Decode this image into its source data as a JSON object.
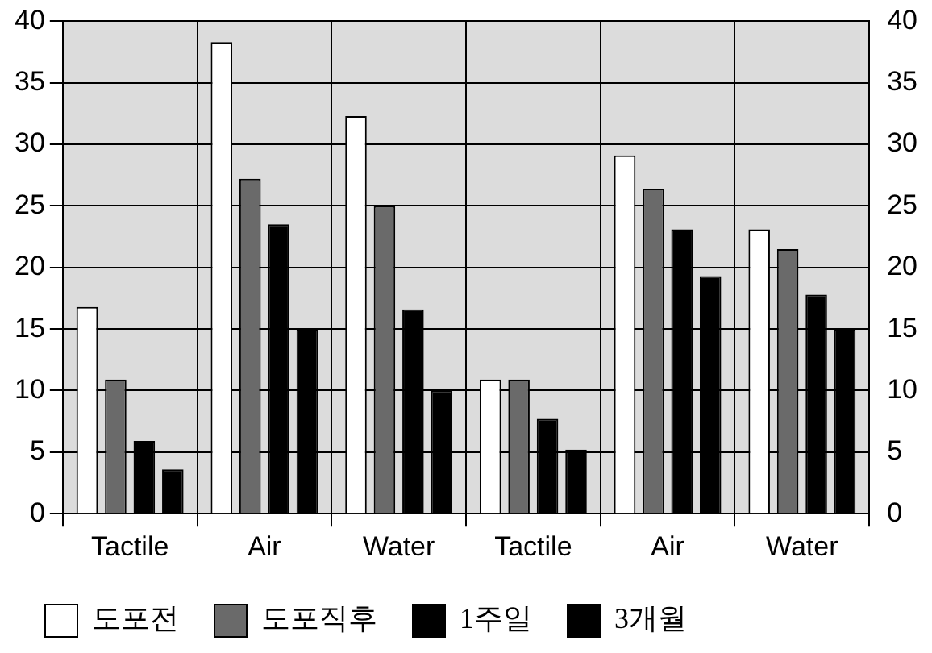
{
  "chart_data": {
    "type": "bar",
    "categories": [
      "Tactile",
      "Air",
      "Water",
      "Tactile",
      "Air",
      "Water"
    ],
    "series": [
      {
        "name": "도포전",
        "color": "#ffffff",
        "values": [
          16.8,
          38.3,
          32.3,
          10.9,
          29.1,
          23.1
        ]
      },
      {
        "name": "도포직후",
        "color": "#6a6a6a",
        "values": [
          10.9,
          27.2,
          25,
          10.9,
          26.4,
          21.5
        ]
      },
      {
        "name": "1주일",
        "color": "#000000",
        "values": [
          5.9,
          23.5,
          16.6,
          7.7,
          23.1,
          17.8
        ]
      },
      {
        "name": "3개월",
        "color": "#000000",
        "values": [
          3.6,
          15,
          10,
          5.2,
          19.3,
          15
        ]
      }
    ],
    "ylim": [
      0,
      40
    ],
    "yticks": [
      0,
      5,
      10,
      15,
      20,
      25,
      30,
      35,
      40
    ],
    "y2lim": [
      0,
      40
    ],
    "y2ticks": [
      0,
      5,
      10,
      15,
      20,
      25,
      30,
      35,
      40
    ],
    "grid": true,
    "legend": "bottom"
  }
}
